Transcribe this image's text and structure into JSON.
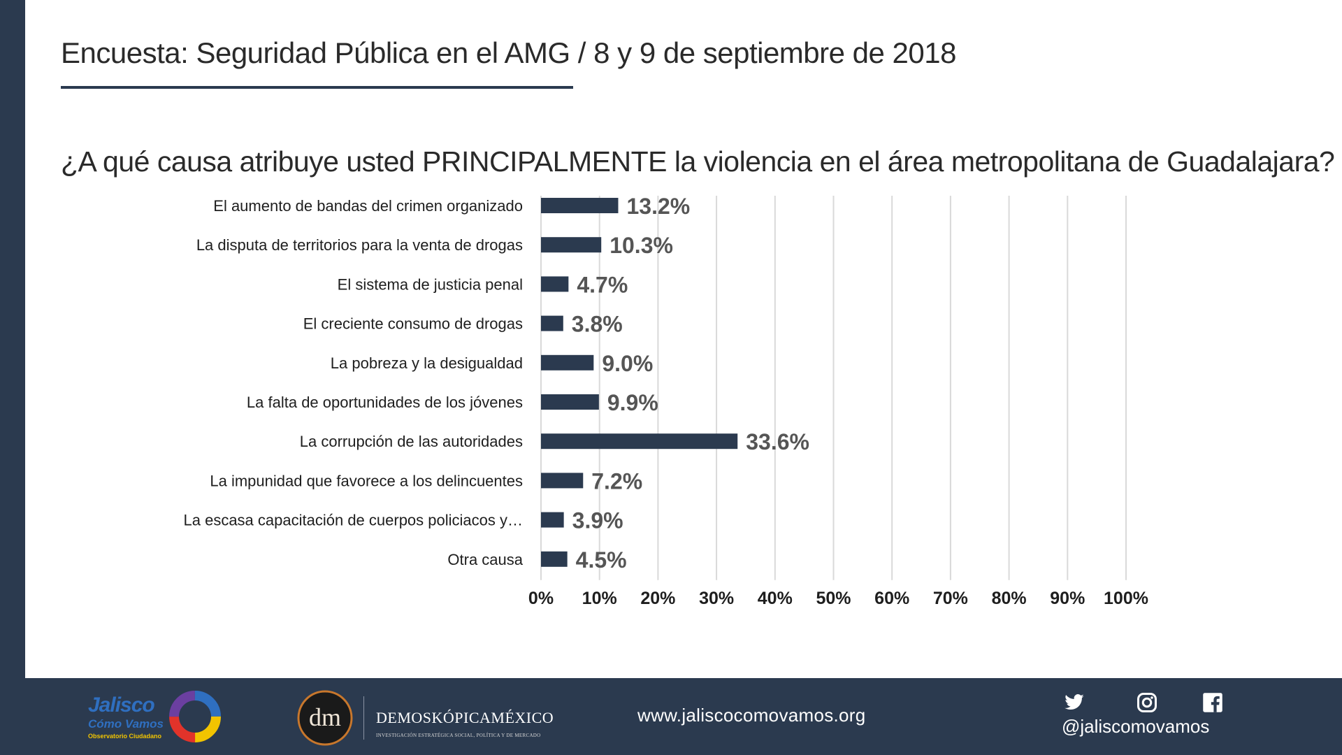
{
  "header": {
    "title": "Encuesta: Seguridad Pública en el AMG / 8 y 9 de septiembre de 2018"
  },
  "question": "¿A qué causa atribuye usted PRINCIPALMENTE la violencia en el área metropolitana de Guadalajara?",
  "chart_data": {
    "type": "bar",
    "orientation": "horizontal",
    "categories": [
      "El aumento de bandas del crimen organizado",
      "La disputa de territorios para la venta de drogas",
      "El sistema de justicia penal",
      "El creciente consumo de drogas",
      "La pobreza y la desigualdad",
      "La falta de oportunidades de los jóvenes",
      "La corrupción de las autoridades",
      "La impunidad que favorece a los delincuentes",
      "La escasa capacitación de cuerpos policiacos y…",
      "Otra causa"
    ],
    "values": [
      13.2,
      10.3,
      4.7,
      3.8,
      9.0,
      9.9,
      33.6,
      7.2,
      3.9,
      4.5
    ],
    "value_labels": [
      "13.2%",
      "10.3%",
      "4.7%",
      "3.8%",
      "9.0%",
      "9.9%",
      "33.6%",
      "7.2%",
      "3.9%",
      "4.5%"
    ],
    "xlim": [
      0,
      100
    ],
    "xticks": [
      "0%",
      "10%",
      "20%",
      "30%",
      "40%",
      "50%",
      "60%",
      "70%",
      "80%",
      "90%",
      "100%"
    ],
    "grid": true,
    "bar_color": "#2b3a4f"
  },
  "footer": {
    "logo_jalisco": {
      "title": "Jalisco",
      "subtitle": "Cómo Vamos",
      "tagline": "Observatorio Ciudadano"
    },
    "logo_demoskopica": {
      "monogram": "dm",
      "name": "DEMOSKÓPICAMÉXICO",
      "tagline": "INVESTIGACIÓN ESTRATÉGICA SOCIAL, POLÍTICA Y DE MERCADO"
    },
    "website": "www.jaliscocomovamos.org",
    "social_icons": [
      "twitter-icon",
      "instagram-icon",
      "facebook-icon"
    ],
    "handle": "@jaliscomovamos"
  },
  "colors": {
    "navy": "#2b3a4f",
    "value_label": "#555555",
    "grid": "#d9d9d9"
  }
}
